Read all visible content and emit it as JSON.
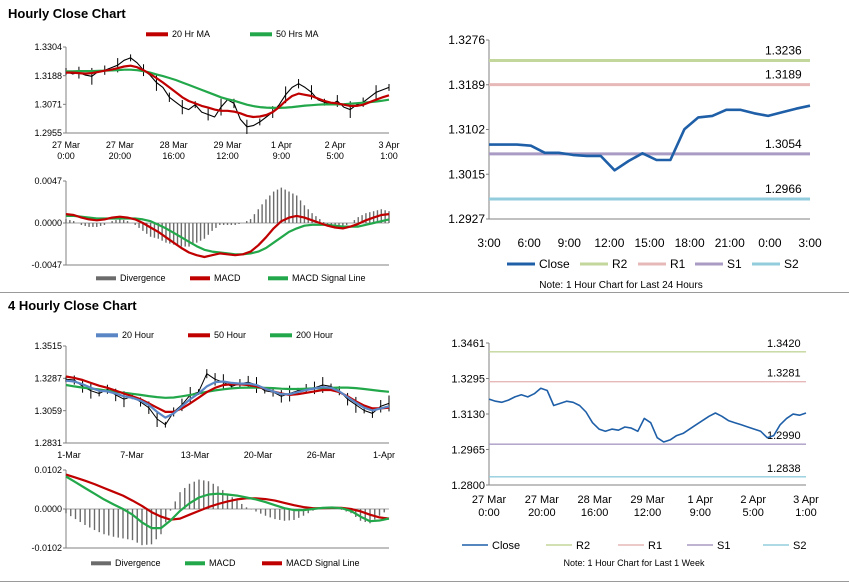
{
  "sections": {
    "hourly_title": "Hourly Close Chart",
    "four_hourly_title": "4 Hourly Close Chart"
  },
  "colors": {
    "price": "#000000",
    "ma_red": "#c00000",
    "ma_green": "#22a84a",
    "ma_blue": "#5b86c5",
    "divergence": "#6b6b6b",
    "close_blue": "#1f5fa8",
    "r2": "#c3d69b",
    "r1": "#e6b9b8",
    "s1": "#a99bc4",
    "s2": "#93cddd"
  },
  "chart_data": [
    {
      "id": "hourly_price",
      "type": "line",
      "ylim": [
        1.2955,
        1.3304
      ],
      "yticks": [
        "1.3304",
        "1.3188",
        "1.3071",
        "1.2955"
      ],
      "xticks": [
        [
          "27 Mar",
          "0:00"
        ],
        [
          "27 Mar",
          "20:00"
        ],
        [
          "28 Mar",
          "16:00"
        ],
        [
          "29 Mar",
          "12:00"
        ],
        [
          "1 Apr",
          "9:00"
        ],
        [
          "2 Apr",
          "5:00"
        ],
        [
          "3 Apr",
          "1:00"
        ]
      ],
      "legend": [
        "20 Hr MA",
        "50 Hrs MA"
      ],
      "series": [
        {
          "name": "Close",
          "values": [
            1.3205,
            1.3195,
            1.32,
            1.319,
            1.3185,
            1.3205,
            1.321,
            1.322,
            1.323,
            1.325,
            1.326,
            1.324,
            1.321,
            1.319,
            1.316,
            1.314,
            1.31,
            1.308,
            1.306,
            1.305,
            1.307,
            1.304,
            1.303,
            1.302,
            1.306,
            1.309,
            1.3075,
            1.301,
            1.298,
            1.2985,
            1.3,
            1.302,
            1.304,
            1.307,
            1.311,
            1.314,
            1.3155,
            1.314,
            1.312,
            1.309,
            1.308,
            1.307,
            1.3085,
            1.306,
            1.305,
            1.307,
            1.308,
            1.31,
            1.312,
            1.313,
            1.314
          ]
        },
        {
          "name": "20 Hr MA",
          "values": [
            1.32,
            1.32,
            1.3198,
            1.3196,
            1.3198,
            1.3203,
            1.3208,
            1.3212,
            1.3218,
            1.3225,
            1.3228,
            1.3222,
            1.321,
            1.3195,
            1.3178,
            1.316,
            1.314,
            1.312,
            1.31,
            1.3085,
            1.3075,
            1.3065,
            1.3058,
            1.305,
            1.3045,
            1.3045,
            1.3042,
            1.3035,
            1.3025,
            1.302,
            1.3022,
            1.3028,
            1.304,
            1.306,
            1.3085,
            1.3105,
            1.3115,
            1.311,
            1.3105,
            1.3095,
            1.3085,
            1.3078,
            1.3075,
            1.307,
            1.3065,
            1.3065,
            1.307,
            1.308,
            1.309,
            1.31,
            1.3108
          ]
        },
        {
          "name": "50 Hrs MA",
          "values": [
            1.3205,
            1.3205,
            1.3206,
            1.3206,
            1.3206,
            1.3207,
            1.3208,
            1.3209,
            1.321,
            1.3212,
            1.3212,
            1.321,
            1.3206,
            1.32,
            1.3193,
            1.3186,
            1.3178,
            1.317,
            1.316,
            1.315,
            1.314,
            1.313,
            1.312,
            1.311,
            1.31,
            1.3092,
            1.3086,
            1.3078,
            1.307,
            1.3064,
            1.306,
            1.3058,
            1.3057,
            1.3057,
            1.3058,
            1.306,
            1.3063,
            1.3066,
            1.3068,
            1.307,
            1.3071,
            1.3071,
            1.3071,
            1.3072,
            1.3074,
            1.3076,
            1.3078,
            1.308,
            1.3083,
            1.3086,
            1.309
          ]
        }
      ]
    },
    {
      "id": "hourly_macd",
      "type": "line",
      "ylim": [
        -0.0047,
        0.0047
      ],
      "yticks": [
        "0.0047",
        "0.0000",
        "-0.0047"
      ],
      "legend": [
        "Divergence",
        "MACD",
        "MACD Signal Line"
      ],
      "series": [
        {
          "name": "MACD",
          "values": [
            0.001,
            0.0009,
            0.0006,
            0.0004,
            0.0003,
            0.0004,
            0.0006,
            0.0007,
            0.0006,
            0.0004,
            0.0,
            -0.0005,
            -0.001,
            -0.0016,
            -0.0022,
            -0.0028,
            -0.0033,
            -0.0036,
            -0.0038,
            -0.0036,
            -0.0034,
            -0.0035,
            -0.0036,
            -0.0035,
            -0.0032,
            -0.0025,
            -0.0016,
            -0.0006,
            0.0002,
            0.0006,
            0.0008,
            0.0006,
            0.0003,
            0.0,
            -0.0003,
            -0.0005,
            -0.0006,
            -0.0004,
            -0.0001,
            0.0003,
            0.0006,
            0.0009,
            0.001
          ]
        },
        {
          "name": "MACD Signal Line",
          "values": [
            0.0008,
            0.0008,
            0.0007,
            0.0006,
            0.0005,
            0.0005,
            0.0005,
            0.0005,
            0.0005,
            0.0005,
            0.0004,
            0.0002,
            -0.0002,
            -0.0006,
            -0.0011,
            -0.0016,
            -0.0021,
            -0.0026,
            -0.003,
            -0.0032,
            -0.0033,
            -0.0034,
            -0.0035,
            -0.0035,
            -0.0034,
            -0.0032,
            -0.0028,
            -0.0022,
            -0.0016,
            -0.001,
            -0.0006,
            -0.0003,
            -0.0002,
            -0.0002,
            -0.0002,
            -0.0003,
            -0.0004,
            -0.0004,
            -0.0004,
            -0.0002,
            0.0,
            0.0002,
            0.0004
          ]
        }
      ]
    },
    {
      "id": "hourly_close_levels",
      "type": "line",
      "title": "Note: 1 Hour Chart for Last 24 Hours",
      "ylim": [
        1.2927,
        1.3276
      ],
      "yticks": [
        "1.3276",
        "1.3189",
        "1.3102",
        "1.3015",
        "1.2927"
      ],
      "xticks": [
        "3:00",
        "6:00",
        "9:00",
        "12:00",
        "15:00",
        "18:00",
        "21:00",
        "0:00",
        "3:00"
      ],
      "legend": [
        "Close",
        "R2",
        "R1",
        "S1",
        "S2"
      ],
      "levels": {
        "R2": 1.3236,
        "R1": 1.3189,
        "S1": 1.3054,
        "S2": 1.2966
      },
      "level_labels": {
        "R2": "1.3236",
        "R1": "1.3189",
        "S1": "1.3054",
        "S2": "1.2966"
      },
      "series": [
        {
          "name": "Close",
          "values": [
            1.3072,
            1.3072,
            1.3072,
            1.307,
            1.3056,
            1.3056,
            1.3052,
            1.305,
            1.305,
            1.3022,
            1.304,
            1.3055,
            1.3042,
            1.3042,
            1.3102,
            1.3125,
            1.3128,
            1.314,
            1.314,
            1.3133,
            1.3128,
            1.3135,
            1.3142,
            1.3148
          ]
        }
      ]
    },
    {
      "id": "four_hourly_price",
      "type": "line",
      "ylim": [
        1.2831,
        1.3515
      ],
      "yticks": [
        "1.3515",
        "1.3287",
        "1.3059",
        "1.2831"
      ],
      "xticks": [
        "1-Mar",
        "7-Mar",
        "13-Mar",
        "20-Mar",
        "26-Mar",
        "1-Apr"
      ],
      "legend": [
        "20 Hour",
        "50 Hour",
        "200 Hour"
      ],
      "series": [
        {
          "name": "Close",
          "values": [
            1.328,
            1.3275,
            1.323,
            1.32,
            1.318,
            1.321,
            1.317,
            1.314,
            1.316,
            1.312,
            1.308,
            1.3,
            1.296,
            1.305,
            1.31,
            1.317,
            1.319,
            1.332,
            1.328,
            1.326,
            1.323,
            1.325,
            1.326,
            1.324,
            1.32,
            1.319,
            1.316,
            1.318,
            1.32,
            1.3215,
            1.322,
            1.324,
            1.323,
            1.32,
            1.314,
            1.31,
            1.306,
            1.304,
            1.309,
            1.311
          ]
        },
        {
          "name": "20 Hour",
          "values": [
            1.327,
            1.3265,
            1.3245,
            1.322,
            1.32,
            1.3195,
            1.318,
            1.316,
            1.315,
            1.313,
            1.31,
            1.305,
            1.301,
            1.304,
            1.309,
            1.314,
            1.318,
            1.323,
            1.326,
            1.3265,
            1.3255,
            1.325,
            1.325,
            1.324,
            1.3215,
            1.3195,
            1.3175,
            1.3175,
            1.319,
            1.3205,
            1.3215,
            1.3225,
            1.322,
            1.3195,
            1.3155,
            1.3115,
            1.308,
            1.306,
            1.3075,
            1.309
          ]
        },
        {
          "name": "50 Hour",
          "values": [
            1.33,
            1.329,
            1.3275,
            1.3255,
            1.3235,
            1.322,
            1.32,
            1.318,
            1.316,
            1.314,
            1.311,
            1.308,
            1.305,
            1.305,
            1.3075,
            1.311,
            1.315,
            1.319,
            1.322,
            1.324,
            1.3245,
            1.3245,
            1.324,
            1.323,
            1.3215,
            1.3195,
            1.318,
            1.317,
            1.3175,
            1.3185,
            1.3195,
            1.3205,
            1.3205,
            1.319,
            1.316,
            1.3125,
            1.3095,
            1.3075,
            1.3075,
            1.308
          ]
        },
        {
          "name": "200 Hour",
          "values": [
            1.324,
            1.323,
            1.3222,
            1.3215,
            1.3208,
            1.32,
            1.3192,
            1.3185,
            1.3178,
            1.317,
            1.3162,
            1.3155,
            1.315,
            1.3152,
            1.316,
            1.317,
            1.318,
            1.3192,
            1.3202,
            1.321,
            1.3216,
            1.322,
            1.3222,
            1.3222,
            1.322,
            1.3218,
            1.3214,
            1.3212,
            1.3212,
            1.3214,
            1.3216,
            1.3218,
            1.322,
            1.3222,
            1.3222,
            1.3218,
            1.3212,
            1.3205,
            1.3198,
            1.3192
          ]
        }
      ]
    },
    {
      "id": "four_hourly_macd",
      "type": "line",
      "ylim": [
        -0.0102,
        0.0102
      ],
      "yticks": [
        "0.0102",
        "0.0000",
        "-0.0102"
      ],
      "legend": [
        "Divergence",
        "MACD",
        "MACD Signal Line"
      ],
      "series": [
        {
          "name": "MACD",
          "values": [
            0.0085,
            0.007,
            0.0055,
            0.004,
            0.0025,
            0.0012,
            0.0,
            -0.0015,
            -0.0035,
            -0.005,
            -0.005,
            -0.003,
            -0.0005,
            0.0015,
            0.003,
            0.0038,
            0.004,
            0.0038,
            0.0035,
            0.003,
            0.0025,
            0.0018,
            0.001,
            0.0002,
            -0.0003,
            -0.0003,
            0.0,
            0.0003,
            0.0004,
            0.0002,
            -0.0005,
            -0.002,
            -0.0032,
            -0.003,
            -0.0025
          ]
        },
        {
          "name": "MACD Signal Line",
          "values": [
            0.009,
            0.0082,
            0.0074,
            0.0065,
            0.0055,
            0.0045,
            0.0035,
            0.0022,
            0.0008,
            -0.0008,
            -0.002,
            -0.0028,
            -0.0025,
            -0.0015,
            -0.0005,
            0.0005,
            0.0013,
            0.002,
            0.0025,
            0.0028,
            0.0028,
            0.0026,
            0.0022,
            0.0016,
            0.001,
            0.0005,
            0.0002,
            0.0002,
            0.0003,
            0.0003,
            0.0,
            -0.0006,
            -0.0015,
            -0.0022,
            -0.0025
          ]
        }
      ]
    },
    {
      "id": "four_hourly_close_levels",
      "type": "line",
      "title": "Note: 1 Hour Chart for Last 1 Week",
      "ylim": [
        1.28,
        1.3461
      ],
      "yticks": [
        "1.3461",
        "1.3295",
        "1.3130",
        "1.2965",
        "1.2800"
      ],
      "xticks": [
        [
          "27 Mar",
          "0:00"
        ],
        [
          "27 Mar",
          "20:00"
        ],
        [
          "28 Mar",
          "16:00"
        ],
        [
          "29 Mar",
          "12:00"
        ],
        [
          "1 Apr",
          "9:00"
        ],
        [
          "2 Apr",
          "5:00"
        ],
        [
          "3 Apr",
          "1:00"
        ]
      ],
      "legend": [
        "Close",
        "R2",
        "R1",
        "S1",
        "S2"
      ],
      "levels": {
        "R2": 1.342,
        "R1": 1.3281,
        "S1": 1.299,
        "S2": 1.2838
      },
      "level_labels": {
        "R2": "1.3420",
        "R1": "1.3281",
        "S1": "1.2990",
        "S2": "1.2838"
      },
      "series": [
        {
          "name": "Close",
          "values": [
            1.32,
            1.319,
            1.3185,
            1.3195,
            1.321,
            1.322,
            1.321,
            1.3225,
            1.325,
            1.324,
            1.317,
            1.318,
            1.319,
            1.3185,
            1.317,
            1.314,
            1.309,
            1.306,
            1.305,
            1.306,
            1.3055,
            1.307,
            1.3065,
            1.305,
            1.311,
            1.309,
            1.302,
            1.3,
            1.301,
            1.303,
            1.304,
            1.306,
            1.308,
            1.31,
            1.312,
            1.3135,
            1.312,
            1.31,
            1.309,
            1.308,
            1.307,
            1.306,
            1.305,
            1.302,
            1.303,
            1.308,
            1.311,
            1.313,
            1.3125,
            1.3135
          ]
        }
      ]
    }
  ]
}
